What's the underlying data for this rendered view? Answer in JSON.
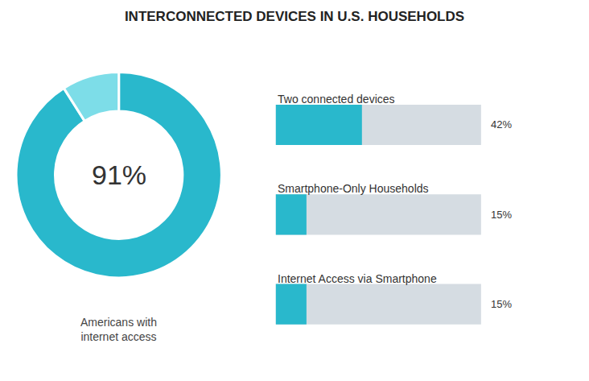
{
  "chart_data": [
    {
      "type": "pie",
      "title": "INTERCONNECTED DEVICES IN U.S. HOUSEHOLDS",
      "values": [
        91,
        9
      ],
      "colors": [
        "#29b8cc",
        "#7ddde8"
      ],
      "annotations": [
        "91%",
        "Americans with\ninternet access"
      ]
    },
    {
      "type": "bar",
      "orientation": "horizontal",
      "categories": [
        "Two connected devices",
        "Smartphone-Only Households",
        "Internet Access via Smartphone"
      ],
      "values": [
        42,
        15,
        15
      ],
      "value_labels": [
        "42%",
        "15%",
        "15%"
      ],
      "data_labels": true,
      "color": "#29b8cc",
      "xlim": [
        0,
        100
      ],
      "tick_labels": "y"
    }
  ]
}
